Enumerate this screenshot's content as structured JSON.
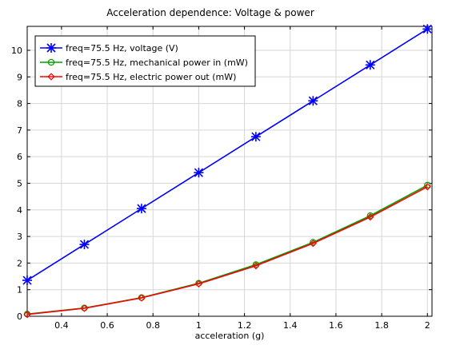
{
  "chart_data": {
    "type": "line",
    "title": "Acceleration dependence: Voltage & power",
    "xlabel": "acceleration (g)",
    "ylabel": "",
    "xlim": [
      0.25,
      2.02
    ],
    "ylim": [
      0,
      10.9
    ],
    "x_ticks": [
      0.4,
      0.6,
      0.8,
      1,
      1.2,
      1.4,
      1.6,
      1.8,
      2
    ],
    "x_tick_labels": [
      "0.4",
      "0.6",
      "0.8",
      "1",
      "1.2",
      "1.4",
      "1.6",
      "1.8",
      "2"
    ],
    "y_ticks": [
      0,
      1,
      2,
      3,
      4,
      5,
      6,
      7,
      8,
      9,
      10
    ],
    "y_tick_labels": [
      "0",
      "1",
      "2",
      "3",
      "4",
      "5",
      "6",
      "7",
      "8",
      "9",
      "10"
    ],
    "grid": true,
    "legend_position": "top-left",
    "x": [
      0.25,
      0.5,
      0.75,
      1.0,
      1.25,
      1.5,
      1.75,
      2.0
    ],
    "series": [
      {
        "name": "freq=75.5 Hz, voltage (V)",
        "color": "#0000ff",
        "marker": "asterisk",
        "values": [
          1.35,
          2.7,
          4.05,
          5.4,
          6.75,
          8.1,
          9.45,
          10.8
        ]
      },
      {
        "name": "freq=75.5 Hz, mechanical power in (mW)",
        "color": "#00a000",
        "marker": "circle",
        "values": [
          0.08,
          0.31,
          0.7,
          1.24,
          1.94,
          2.78,
          3.78,
          4.93
        ]
      },
      {
        "name": "freq=75.5 Hz, electric power out (mW)",
        "color": "#ff0000",
        "marker": "diamond",
        "values": [
          0.07,
          0.3,
          0.69,
          1.22,
          1.9,
          2.74,
          3.73,
          4.87
        ]
      }
    ]
  }
}
